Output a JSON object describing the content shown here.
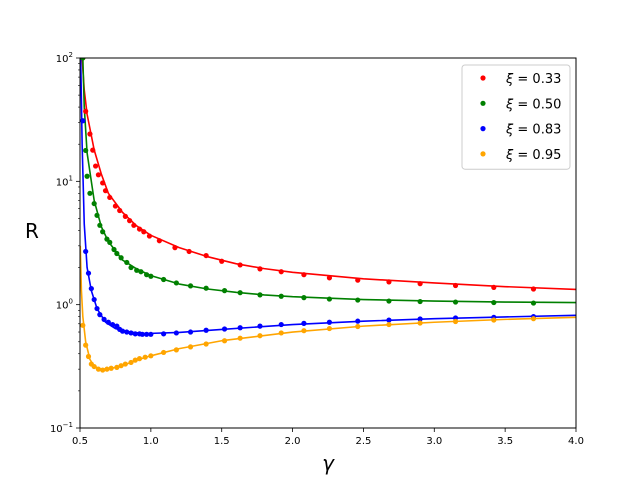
{
  "chart_data": {
    "type": "scatter",
    "xlabel": "γ",
    "ylabel": "R",
    "xlim": [
      0.5,
      4.0
    ],
    "ylim": [
      0.1,
      100
    ],
    "yscale": "log",
    "grid": false,
    "legend_position": "top-right",
    "x_ticks": [
      "0.5",
      "1.0",
      "1.5",
      "2.0",
      "2.5",
      "3.0",
      "3.5",
      "4.0"
    ],
    "y_ticks": [
      {
        "base": "10",
        "exp": "−1"
      },
      {
        "base": "10",
        "exp": "0"
      },
      {
        "base": "10",
        "exp": "1"
      },
      {
        "base": "10",
        "exp": "2"
      }
    ],
    "legend_symbol": "ξ",
    "series": [
      {
        "name": "0.33",
        "color": "#ff0000",
        "points": [
          [
            0.52,
            100.1
          ],
          [
            0.54,
            37.0
          ],
          [
            0.57,
            24.2
          ],
          [
            0.59,
            17.9
          ],
          [
            0.61,
            13.3
          ],
          [
            0.63,
            11.3
          ],
          [
            0.66,
            9.7
          ],
          [
            0.68,
            8.4
          ],
          [
            0.71,
            7.4
          ],
          [
            0.75,
            6.3
          ],
          [
            0.78,
            5.8
          ],
          [
            0.82,
            5.2
          ],
          [
            0.85,
            4.8
          ],
          [
            0.88,
            4.4
          ],
          [
            0.92,
            4.1
          ],
          [
            0.95,
            3.9
          ],
          [
            0.99,
            3.6
          ],
          [
            1.06,
            3.3
          ],
          [
            1.17,
            2.9
          ],
          [
            1.27,
            2.7
          ],
          [
            1.39,
            2.5
          ],
          [
            1.5,
            2.25
          ],
          [
            1.63,
            2.1
          ],
          [
            1.77,
            1.95
          ],
          [
            1.92,
            1.85
          ],
          [
            2.08,
            1.75
          ],
          [
            2.26,
            1.65
          ],
          [
            2.46,
            1.58
          ],
          [
            2.68,
            1.53
          ],
          [
            2.9,
            1.48
          ],
          [
            3.15,
            1.43
          ],
          [
            3.42,
            1.38
          ],
          [
            3.7,
            1.34
          ]
        ],
        "curve": [
          [
            0.515,
            100
          ],
          [
            0.53,
            55
          ],
          [
            0.55,
            35
          ],
          [
            0.6,
            18
          ],
          [
            0.65,
            11.5
          ],
          [
            0.7,
            8
          ],
          [
            0.8,
            5.6
          ],
          [
            0.9,
            4.35
          ],
          [
            1.0,
            3.65
          ],
          [
            1.2,
            2.9
          ],
          [
            1.4,
            2.45
          ],
          [
            1.6,
            2.15
          ],
          [
            1.8,
            1.96
          ],
          [
            2.0,
            1.83
          ],
          [
            2.5,
            1.62
          ],
          [
            3.0,
            1.5
          ],
          [
            3.5,
            1.4
          ],
          [
            4.0,
            1.33
          ]
        ]
      },
      {
        "name": "0.50",
        "color": "#008000",
        "points": [
          [
            0.52,
            100.1
          ],
          [
            0.54,
            17.8
          ],
          [
            0.55,
            11.0
          ],
          [
            0.57,
            8.0
          ],
          [
            0.6,
            6.6
          ],
          [
            0.62,
            5.3
          ],
          [
            0.64,
            4.4
          ],
          [
            0.66,
            3.9
          ],
          [
            0.69,
            3.4
          ],
          [
            0.71,
            3.2
          ],
          [
            0.74,
            2.8
          ],
          [
            0.76,
            2.6
          ],
          [
            0.79,
            2.4
          ],
          [
            0.83,
            2.2
          ],
          [
            0.86,
            2.0
          ],
          [
            0.9,
            1.9
          ],
          [
            0.93,
            1.85
          ],
          [
            0.97,
            1.75
          ],
          [
            1.0,
            1.7
          ],
          [
            1.09,
            1.6
          ],
          [
            1.18,
            1.5
          ],
          [
            1.28,
            1.42
          ],
          [
            1.39,
            1.36
          ],
          [
            1.52,
            1.3
          ],
          [
            1.63,
            1.25
          ],
          [
            1.77,
            1.2
          ],
          [
            1.92,
            1.17
          ],
          [
            2.08,
            1.14
          ],
          [
            2.26,
            1.11
          ],
          [
            2.46,
            1.09
          ],
          [
            2.68,
            1.07
          ],
          [
            2.9,
            1.06
          ],
          [
            3.15,
            1.05
          ],
          [
            3.42,
            1.04
          ],
          [
            3.7,
            1.03
          ]
        ],
        "curve": [
          [
            0.52,
            100
          ],
          [
            0.53,
            40
          ],
          [
            0.55,
            17
          ],
          [
            0.6,
            7
          ],
          [
            0.65,
            4.3
          ],
          [
            0.7,
            3.25
          ],
          [
            0.8,
            2.3
          ],
          [
            0.9,
            1.95
          ],
          [
            1.0,
            1.72
          ],
          [
            1.2,
            1.47
          ],
          [
            1.4,
            1.34
          ],
          [
            1.6,
            1.26
          ],
          [
            1.8,
            1.2
          ],
          [
            2.0,
            1.16
          ],
          [
            2.5,
            1.1
          ],
          [
            3.0,
            1.07
          ],
          [
            3.5,
            1.05
          ],
          [
            4.0,
            1.04
          ]
        ]
      },
      {
        "name": "0.83",
        "color": "#0000ff",
        "points": [
          [
            0.52,
            31.0
          ],
          [
            0.54,
            2.7
          ],
          [
            0.56,
            1.8
          ],
          [
            0.58,
            1.35
          ],
          [
            0.6,
            1.1
          ],
          [
            0.62,
            0.93
          ],
          [
            0.64,
            0.83
          ],
          [
            0.67,
            0.76
          ],
          [
            0.7,
            0.72
          ],
          [
            0.73,
            0.69
          ],
          [
            0.76,
            0.67
          ],
          [
            0.78,
            0.63
          ],
          [
            0.8,
            0.61
          ],
          [
            0.83,
            0.6
          ],
          [
            0.86,
            0.59
          ],
          [
            0.89,
            0.58
          ],
          [
            0.92,
            0.58
          ],
          [
            0.94,
            0.575
          ],
          [
            0.97,
            0.575
          ],
          [
            1.0,
            0.575
          ],
          [
            1.09,
            0.58
          ],
          [
            1.18,
            0.59
          ],
          [
            1.28,
            0.6
          ],
          [
            1.39,
            0.62
          ],
          [
            1.52,
            0.635
          ],
          [
            1.63,
            0.65
          ],
          [
            1.77,
            0.67
          ],
          [
            1.92,
            0.69
          ],
          [
            2.08,
            0.705
          ],
          [
            2.26,
            0.72
          ],
          [
            2.46,
            0.735
          ],
          [
            2.68,
            0.75
          ],
          [
            2.9,
            0.765
          ],
          [
            3.15,
            0.78
          ],
          [
            3.42,
            0.79
          ],
          [
            3.7,
            0.8
          ]
        ],
        "curve": [
          [
            0.505,
            100
          ],
          [
            0.515,
            20
          ],
          [
            0.53,
            4.5
          ],
          [
            0.55,
            2.0
          ],
          [
            0.58,
            1.3
          ],
          [
            0.62,
            0.93
          ],
          [
            0.68,
            0.72
          ],
          [
            0.75,
            0.64
          ],
          [
            0.85,
            0.6
          ],
          [
            0.95,
            0.585
          ],
          [
            1.0,
            0.585
          ],
          [
            1.2,
            0.595
          ],
          [
            1.5,
            0.63
          ],
          [
            2.0,
            0.69
          ],
          [
            2.5,
            0.735
          ],
          [
            3.0,
            0.77
          ],
          [
            3.5,
            0.795
          ],
          [
            4.0,
            0.82
          ]
        ]
      },
      {
        "name": "0.95",
        "color": "#ffa500",
        "points": [
          [
            0.52,
            0.68
          ],
          [
            0.54,
            0.47
          ],
          [
            0.56,
            0.38
          ],
          [
            0.58,
            0.33
          ],
          [
            0.6,
            0.315
          ],
          [
            0.63,
            0.3
          ],
          [
            0.66,
            0.295
          ],
          [
            0.69,
            0.3
          ],
          [
            0.72,
            0.305
          ],
          [
            0.76,
            0.31
          ],
          [
            0.79,
            0.32
          ],
          [
            0.82,
            0.33
          ],
          [
            0.86,
            0.34
          ],
          [
            0.89,
            0.355
          ],
          [
            0.92,
            0.365
          ],
          [
            0.96,
            0.375
          ],
          [
            1.0,
            0.385
          ],
          [
            1.09,
            0.41
          ],
          [
            1.18,
            0.43
          ],
          [
            1.28,
            0.455
          ],
          [
            1.39,
            0.48
          ],
          [
            1.52,
            0.51
          ],
          [
            1.63,
            0.535
          ],
          [
            1.77,
            0.56
          ],
          [
            1.92,
            0.59
          ],
          [
            2.08,
            0.615
          ],
          [
            2.26,
            0.64
          ],
          [
            2.46,
            0.665
          ],
          [
            2.68,
            0.69
          ],
          [
            2.9,
            0.71
          ],
          [
            3.15,
            0.73
          ],
          [
            3.42,
            0.75
          ],
          [
            3.7,
            0.77
          ]
        ],
        "curve": [
          [
            0.502,
            3.0
          ],
          [
            0.51,
            1.3
          ],
          [
            0.52,
            0.8
          ],
          [
            0.54,
            0.5
          ],
          [
            0.57,
            0.36
          ],
          [
            0.6,
            0.315
          ],
          [
            0.65,
            0.3
          ],
          [
            0.7,
            0.3
          ],
          [
            0.8,
            0.32
          ],
          [
            0.9,
            0.355
          ],
          [
            1.0,
            0.385
          ],
          [
            1.2,
            0.44
          ],
          [
            1.5,
            0.51
          ],
          [
            2.0,
            0.6
          ],
          [
            2.5,
            0.67
          ],
          [
            3.0,
            0.72
          ],
          [
            3.5,
            0.76
          ],
          [
            4.0,
            0.79
          ]
        ]
      }
    ]
  }
}
